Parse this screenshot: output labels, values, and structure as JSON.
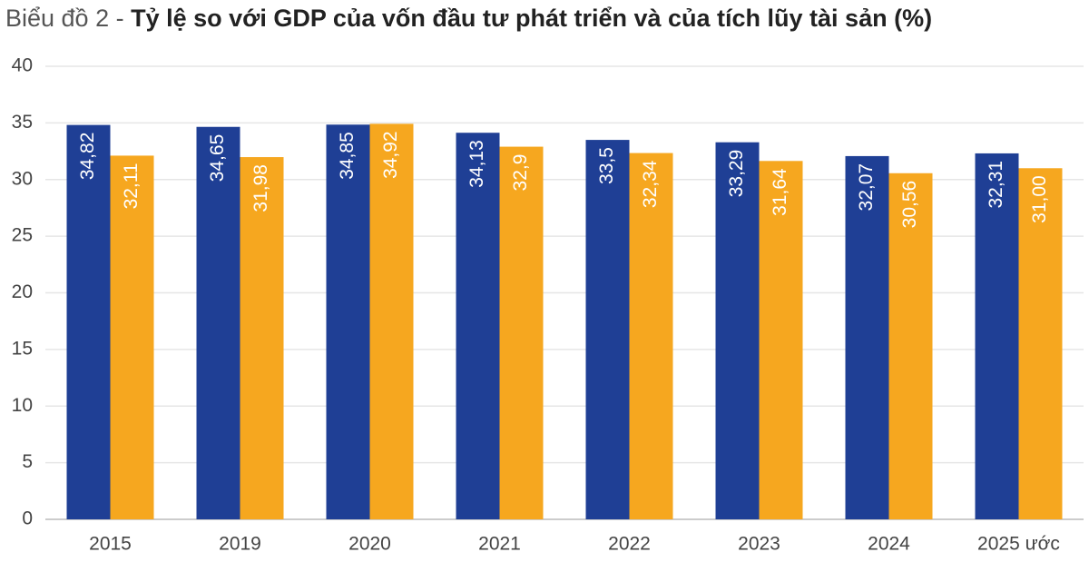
{
  "chart_data": {
    "type": "bar",
    "figure_label": "Biểu đồ 2 -",
    "title": "Tỷ lệ so với GDP của vốn đầu tư phát triển và của tích lũy tài sản (%)",
    "categories": [
      "2015",
      "2019",
      "2020",
      "2021",
      "2022",
      "2023",
      "2024",
      "2025 ước"
    ],
    "series": [
      {
        "color": "#1f3f95",
        "values": [
          34.82,
          34.65,
          34.85,
          34.13,
          33.5,
          33.29,
          32.07,
          32.31
        ],
        "value_labels": [
          "34,82",
          "34,65",
          "34,85",
          "34,13",
          "33,5",
          "33,29",
          "32,07",
          "32,31"
        ]
      },
      {
        "color": "#f6a71f",
        "values": [
          32.11,
          31.98,
          34.92,
          32.9,
          32.34,
          31.64,
          30.56,
          31
        ],
        "value_labels": [
          "32,11",
          "31,98",
          "34,92",
          "32,9",
          "32,34",
          "31,64",
          "30,56",
          "31,00"
        ]
      }
    ],
    "ylim": [
      0,
      40
    ],
    "yticks": [
      0,
      5,
      10,
      15,
      20,
      25,
      30,
      35,
      40
    ],
    "grid": true
  }
}
